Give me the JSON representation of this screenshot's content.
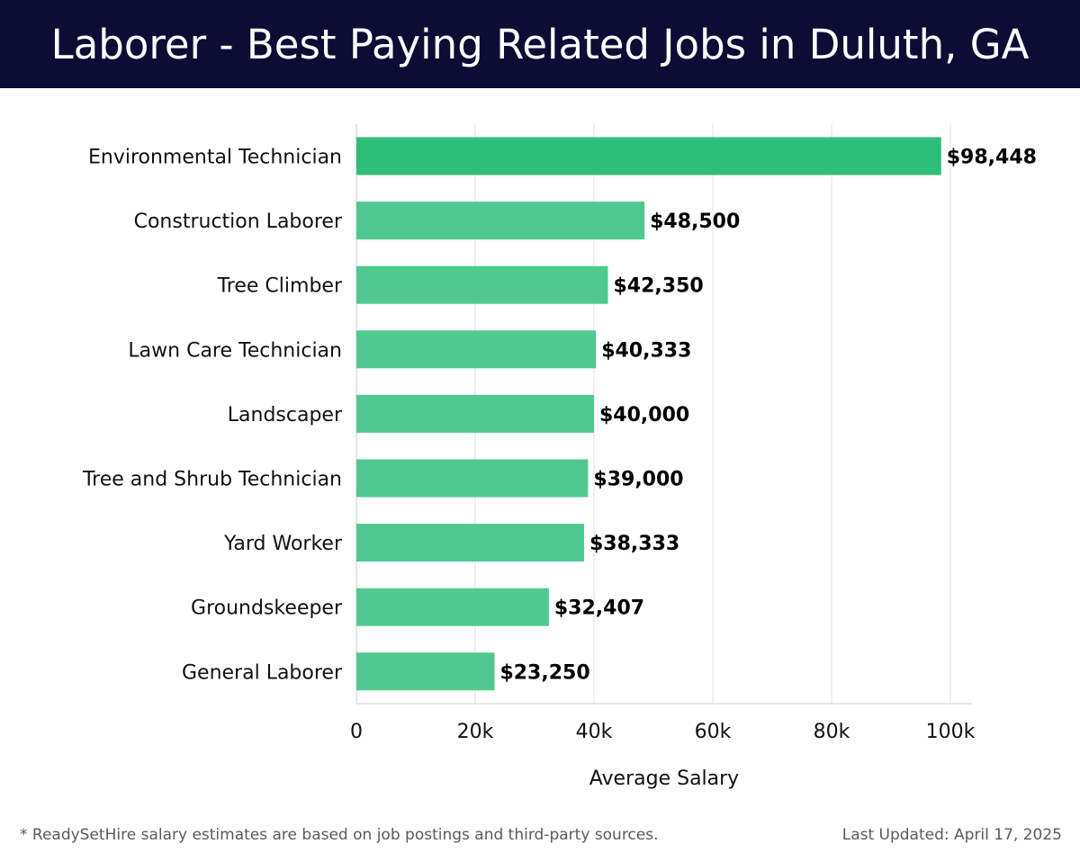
{
  "header": {
    "title": "Laborer - Best Paying Related Jobs in Duluth, GA"
  },
  "chart_data": {
    "type": "bar",
    "orientation": "horizontal",
    "title": "Laborer - Best Paying Related Jobs in Duluth, GA",
    "xlabel": "Average Salary",
    "ylabel": "",
    "categories": [
      "Environmental Technician",
      "Construction Laborer",
      "Tree Climber",
      "Lawn Care Technician",
      "Landscaper",
      "Tree and Shrub Technician",
      "Yard Worker",
      "Groundskeeper",
      "General Laborer"
    ],
    "values": [
      98448,
      48500,
      42350,
      40333,
      40000,
      39000,
      38333,
      32407,
      23250
    ],
    "value_labels": [
      "$98,448",
      "$48,500",
      "$42,350",
      "$40,333",
      "$40,000",
      "$39,000",
      "$38,333",
      "$32,407",
      "$23,250"
    ],
    "xlim": [
      0,
      100000
    ],
    "xticks": [
      0,
      20000,
      40000,
      60000,
      80000,
      100000
    ],
    "xtick_labels": [
      "0",
      "20k",
      "40k",
      "60k",
      "80k",
      "100k"
    ],
    "grid": true,
    "legend": "none",
    "colors": {
      "highlight_bar": "#2dbf78",
      "bar": "#4fc98f",
      "grid": "#e2e2e2",
      "axis": "#cfcfcf"
    }
  },
  "footer": {
    "note": "* ReadySetHire salary estimates are based on job postings and third-party sources.",
    "updated": "Last Updated: April 17, 2025"
  }
}
